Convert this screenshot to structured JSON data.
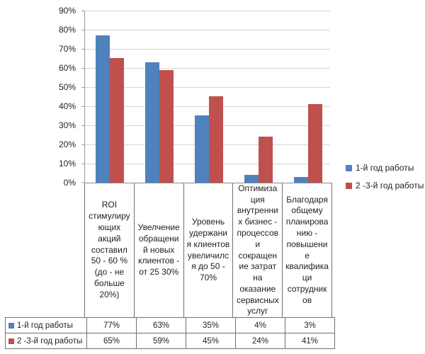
{
  "chart_data": {
    "type": "bar",
    "title": "",
    "categories": [
      "ROI\nстимулиру\nющих\nакций\nсоставил\n50 - 60 %\n(до - не\nбольше\n20%)",
      "Увелчение\nобращени\nй новых\nклиентов -\nот 25 30%",
      "Уровень\nудержани\nя клиентов\nувеличилс\nя до 50 -\n70%",
      "Оптимиза\nция\nвнутренни\nх бизнес -\nпроцессов\nи\nсокращен\nие затрат\nна\nоказание\nсервисных\nуслуг",
      "Благодаря\nобщему\nпланирова\nнию -\nповышени\nе\nквалифика\nци\nсотрудник\nов"
    ],
    "series": [
      {
        "name": "1-й год работы",
        "color": "#4F81BD",
        "values": [
          77,
          63,
          35,
          4,
          3
        ]
      },
      {
        "name": "2 -3-й год работы",
        "color": "#C0504D",
        "values": [
          65,
          59,
          45,
          24,
          41
        ]
      }
    ],
    "value_suffix": "%",
    "ylim": [
      0,
      90
    ],
    "ytick_step": 10,
    "yticks": [
      "0%",
      "10%",
      "20%",
      "30%",
      "40%",
      "50%",
      "60%",
      "70%",
      "80%",
      "90%"
    ],
    "grid": true,
    "legend_position": "right",
    "data_table_shown": true
  }
}
